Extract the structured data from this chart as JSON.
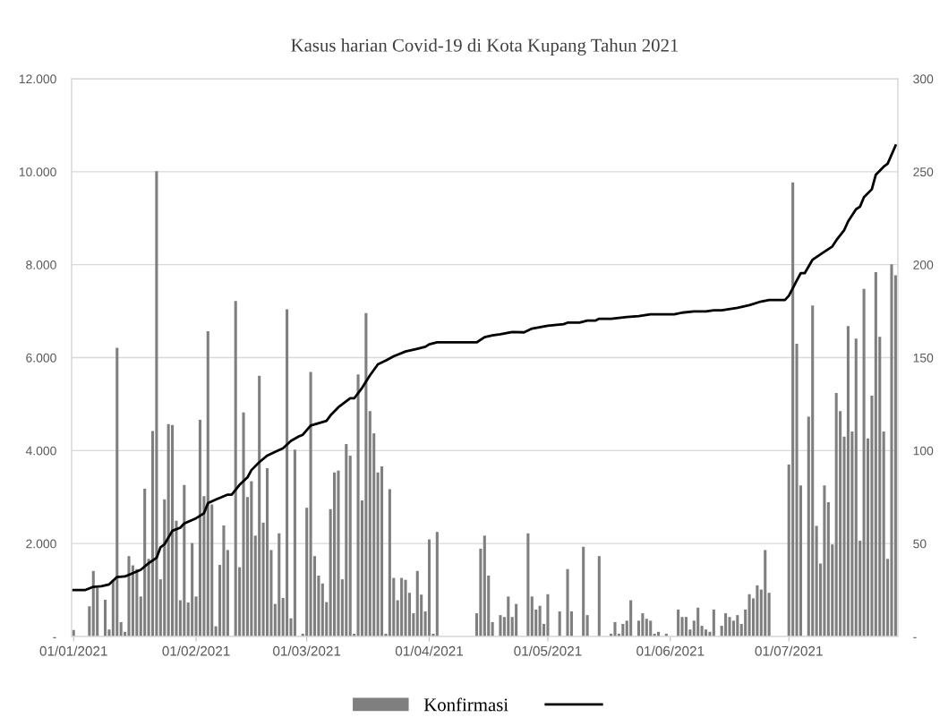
{
  "chart_data": {
    "type": "bar",
    "title": "Kasus harian Covid-19 di Kota Kupang Tahun 2021",
    "x": [
      "2021-01-01",
      "2021-01-05",
      "2021-01-06",
      "2021-01-07",
      "2021-01-09",
      "2021-01-10",
      "2021-01-11",
      "2021-01-12",
      "2021-01-13",
      "2021-01-14",
      "2021-01-15",
      "2021-01-16",
      "2021-01-17",
      "2021-01-18",
      "2021-01-19",
      "2021-01-20",
      "2021-01-21",
      "2021-01-22",
      "2021-01-23",
      "2021-01-24",
      "2021-01-25",
      "2021-01-26",
      "2021-01-27",
      "2021-01-28",
      "2021-01-29",
      "2021-01-30",
      "2021-01-31",
      "2021-02-01",
      "2021-02-02",
      "2021-02-03",
      "2021-02-04",
      "2021-02-05",
      "2021-02-06",
      "2021-02-07",
      "2021-02-08",
      "2021-02-09",
      "2021-02-11",
      "2021-02-12",
      "2021-02-13",
      "2021-02-14",
      "2021-02-15",
      "2021-02-16",
      "2021-02-17",
      "2021-02-18",
      "2021-02-19",
      "2021-02-20",
      "2021-02-21",
      "2021-02-22",
      "2021-02-23",
      "2021-02-24",
      "2021-02-25",
      "2021-02-26",
      "2021-02-28",
      "2021-03-01",
      "2021-03-02",
      "2021-03-03",
      "2021-03-04",
      "2021-03-05",
      "2021-03-06",
      "2021-03-07",
      "2021-03-08",
      "2021-03-09",
      "2021-03-10",
      "2021-03-11",
      "2021-03-12",
      "2021-03-13",
      "2021-03-14",
      "2021-03-15",
      "2021-03-16",
      "2021-03-17",
      "2021-03-18",
      "2021-03-19",
      "2021-03-20",
      "2021-03-21",
      "2021-03-22",
      "2021-03-23",
      "2021-03-24",
      "2021-03-25",
      "2021-03-26",
      "2021-03-27",
      "2021-03-28",
      "2021-03-29",
      "2021-03-30",
      "2021-03-31",
      "2021-04-01",
      "2021-04-02",
      "2021-04-03",
      "2021-04-13",
      "2021-04-14",
      "2021-04-15",
      "2021-04-16",
      "2021-04-17",
      "2021-04-19",
      "2021-04-20",
      "2021-04-21",
      "2021-04-22",
      "2021-04-23",
      "2021-04-26",
      "2021-04-27",
      "2021-04-28",
      "2021-04-29",
      "2021-04-30",
      "2021-05-01",
      "2021-05-04",
      "2021-05-06",
      "2021-05-07",
      "2021-05-10",
      "2021-05-11",
      "2021-05-14",
      "2021-05-17",
      "2021-05-18",
      "2021-05-19",
      "2021-05-20",
      "2021-05-21",
      "2021-05-22",
      "2021-05-24",
      "2021-05-25",
      "2021-05-26",
      "2021-05-27",
      "2021-05-28",
      "2021-05-29",
      "2021-05-31",
      "2021-06-03",
      "2021-06-04",
      "2021-06-05",
      "2021-06-06",
      "2021-06-07",
      "2021-06-08",
      "2021-06-09",
      "2021-06-10",
      "2021-06-11",
      "2021-06-12",
      "2021-06-14",
      "2021-06-15",
      "2021-06-16",
      "2021-06-17",
      "2021-06-18",
      "2021-06-19",
      "2021-06-20",
      "2021-06-21",
      "2021-06-22",
      "2021-06-23",
      "2021-06-24",
      "2021-06-25",
      "2021-06-26",
      "2021-07-01",
      "2021-07-02",
      "2021-07-03",
      "2021-07-04",
      "2021-07-06",
      "2021-07-07",
      "2021-07-08",
      "2021-07-09",
      "2021-07-10",
      "2021-07-11",
      "2021-07-12",
      "2021-07-13",
      "2021-07-14",
      "2021-07-15",
      "2021-07-16",
      "2021-07-17",
      "2021-07-18",
      "2021-07-19",
      "2021-07-20",
      "2021-07-21",
      "2021-07-22",
      "2021-07-23",
      "2021-07-24",
      "2021-07-25",
      "2021-07-26",
      "2021-07-27",
      "2021-07-28"
    ],
    "series": [
      {
        "name": "Konfirmasi",
        "color": "#7f7f7f",
        "values": [
          140,
          650,
          1410,
          1050,
          790,
          150,
          1220,
          6210,
          310,
          100,
          1730,
          1530,
          1450,
          860,
          3180,
          1670,
          4420,
          10010,
          1230,
          2950,
          4570,
          4550,
          2490,
          780,
          3260,
          730,
          2010,
          860,
          4660,
          3020,
          6570,
          2840,
          220,
          1540,
          2390,
          1860,
          7220,
          1490,
          4820,
          3000,
          3340,
          2170,
          5610,
          2450,
          3620,
          1860,
          700,
          2220,
          830,
          7040,
          390,
          4020,
          60,
          2770,
          5690,
          1730,
          1310,
          1140,
          740,
          2740,
          3530,
          3570,
          1230,
          4140,
          3890,
          60,
          5640,
          2930,
          6960,
          4850,
          4370,
          3530,
          3660,
          60,
          3170,
          1260,
          780,
          1260,
          1220,
          940,
          500,
          1410,
          900,
          540,
          2090,
          60,
          2250,
          500,
          1890,
          2170,
          1310,
          310,
          460,
          420,
          860,
          420,
          700,
          2220,
          860,
          580,
          660,
          270,
          910,
          540,
          1450,
          540,
          1930,
          460,
          1730,
          60,
          310,
          60,
          270,
          340,
          780,
          340,
          500,
          380,
          340,
          60,
          100,
          60,
          580,
          420,
          420,
          150,
          340,
          620,
          230,
          150,
          100,
          580,
          230,
          500,
          420,
          340,
          460,
          270,
          580,
          910,
          820,
          1100,
          1010,
          1860,
          940,
          3700,
          9770,
          6300,
          3250,
          4730,
          7120,
          2380,
          1570,
          3250,
          2890,
          1980,
          5240,
          4850,
          4300,
          6680,
          4410,
          6410,
          2060,
          7480,
          4260,
          5180,
          7840,
          6450,
          4410,
          1670,
          8010,
          7770
        ]
      },
      {
        "type": "line",
        "axis": "y2",
        "color": "#000000",
        "x": [
          "2021-01-01",
          "2021-01-04",
          "2021-01-06",
          "2021-01-08",
          "2021-01-10",
          "2021-01-12",
          "2021-01-14",
          "2021-01-18",
          "2021-01-20",
          "2021-01-22",
          "2021-01-23",
          "2021-01-24",
          "2021-01-26",
          "2021-01-28",
          "2021-01-29",
          "2021-02-01",
          "2021-02-03",
          "2021-02-04",
          "2021-02-06",
          "2021-02-09",
          "2021-02-10",
          "2021-02-12",
          "2021-02-14",
          "2021-02-15",
          "2021-02-17",
          "2021-02-19",
          "2021-02-21",
          "2021-02-23",
          "2021-02-25",
          "2021-02-27",
          "2021-02-28",
          "2021-03-02",
          "2021-03-06",
          "2021-03-07",
          "2021-03-09",
          "2021-03-12",
          "2021-03-13",
          "2021-03-15",
          "2021-03-17",
          "2021-03-19",
          "2021-03-21",
          "2021-03-23",
          "2021-03-26",
          "2021-03-29",
          "2021-03-31",
          "2021-04-01",
          "2021-04-03",
          "2021-04-13",
          "2021-04-15",
          "2021-04-17",
          "2021-04-19",
          "2021-04-22",
          "2021-04-25",
          "2021-04-27",
          "2021-05-01",
          "2021-05-05",
          "2021-05-06",
          "2021-05-09",
          "2021-05-11",
          "2021-05-13",
          "2021-05-14",
          "2021-05-17",
          "2021-05-21",
          "2021-05-24",
          "2021-05-27",
          "2021-06-02",
          "2021-06-04",
          "2021-06-07",
          "2021-06-10",
          "2021-06-12",
          "2021-06-14",
          "2021-06-18",
          "2021-06-21",
          "2021-06-24",
          "2021-06-26",
          "2021-06-30",
          "2021-07-01",
          "2021-07-03",
          "2021-07-04",
          "2021-07-05",
          "2021-07-07",
          "2021-07-09",
          "2021-07-12",
          "2021-07-13",
          "2021-07-15",
          "2021-07-16",
          "2021-07-18",
          "2021-07-19",
          "2021-07-20",
          "2021-07-22",
          "2021-07-23",
          "2021-07-25",
          "2021-07-26",
          "2021-07-28"
        ],
        "values": [
          25,
          25,
          26.7,
          27,
          28,
          32,
          32.3,
          35.9,
          39.4,
          42.3,
          48,
          49.6,
          56.9,
          58.5,
          60.8,
          63.6,
          66.3,
          71.8,
          73.7,
          76.3,
          76.3,
          81.6,
          85.6,
          89.5,
          93.8,
          97.3,
          99.3,
          101.2,
          105.2,
          107.6,
          108.5,
          113.5,
          116,
          118.9,
          123.3,
          128.1,
          128.1,
          133.7,
          140.5,
          146.4,
          148.4,
          150.7,
          153.3,
          154.8,
          155.8,
          157.2,
          158.2,
          158.2,
          161,
          162,
          162.6,
          163.8,
          163.6,
          165.6,
          167.2,
          168,
          168.8,
          168.8,
          169.9,
          169.9,
          170.9,
          170.9,
          171.9,
          172.3,
          173.3,
          173.3,
          174.2,
          174.9,
          174.9,
          175.5,
          175.5,
          176.8,
          178.2,
          180.2,
          181,
          181,
          183.3,
          191.5,
          195.4,
          195.4,
          202.7,
          205.6,
          209.8,
          213.1,
          218.6,
          223.3,
          229.8,
          231.2,
          236.3,
          240.6,
          248.4,
          252.7,
          254.3,
          264.1
        ]
      }
    ],
    "xlim": [
      "2020-12-31T12:00",
      "2021-07-28T14:00"
    ],
    "xticks": [
      {
        "value": "2021-01-01",
        "label": "01/01/2021"
      },
      {
        "value": "2021-02-01",
        "label": "01/02/2021"
      },
      {
        "value": "2021-03-01",
        "label": "01/03/2021"
      },
      {
        "value": "2021-04-01",
        "label": "01/04/2021"
      },
      {
        "value": "2021-05-01",
        "label": "01/05/2021"
      },
      {
        "value": "2021-06-01",
        "label": "01/06/2021"
      },
      {
        "value": "2021-07-01",
        "label": "01/07/2021"
      }
    ],
    "ylim": [
      0,
      12000
    ],
    "yticks": [
      {
        "value": 0,
        "label": "-"
      },
      {
        "value": 2000,
        "label": "2.000"
      },
      {
        "value": 4000,
        "label": "4.000"
      },
      {
        "value": 6000,
        "label": "6.000"
      },
      {
        "value": 8000,
        "label": "8.000"
      },
      {
        "value": 10000,
        "label": "10.000"
      },
      {
        "value": 12000,
        "label": "12.000"
      }
    ],
    "y2lim": [
      0,
      300
    ],
    "y2ticks": [
      {
        "value": 0,
        "label": "-"
      },
      50,
      100,
      150,
      200,
      250,
      300
    ],
    "grid": "y",
    "legend": "bottom"
  }
}
